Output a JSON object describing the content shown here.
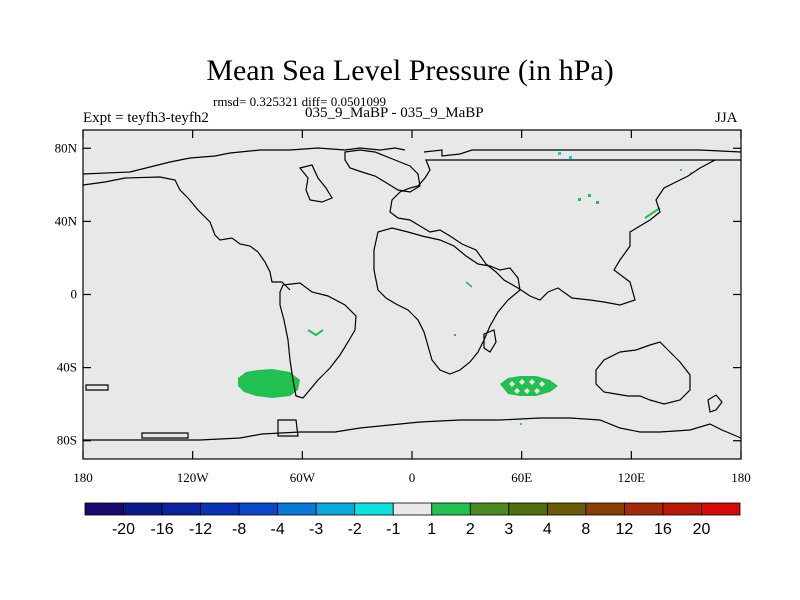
{
  "header": {
    "title": "Mean Sea Level Pressure (in hPa)",
    "stats": "rmsd= 0.325321 diff= 0.0501099",
    "left_label": "Expt = teyfh3-teyfh2",
    "center_label": "035_9_MaBP - 035_9_MaBP",
    "right_label": "JJA"
  },
  "map": {
    "projection": "cylindrical equidistant",
    "lon_range": [
      -180,
      180
    ],
    "lat_range": [
      -90,
      90
    ],
    "background_color": "#e8e8e8",
    "coastline_color": "#000000"
  },
  "axes": {
    "y_ticks": [
      {
        "value": 80,
        "label": "80N"
      },
      {
        "value": 40,
        "label": "40N"
      },
      {
        "value": 0,
        "label": "0"
      },
      {
        "value": -40,
        "label": "40S"
      },
      {
        "value": -80,
        "label": "80S"
      }
    ],
    "x_ticks": [
      {
        "value": -180,
        "label": "180"
      },
      {
        "value": -120,
        "label": "120W"
      },
      {
        "value": -60,
        "label": "60W"
      },
      {
        "value": 0,
        "label": "0"
      },
      {
        "value": 60,
        "label": "60E"
      },
      {
        "value": 120,
        "label": "120E"
      },
      {
        "value": 180,
        "label": "180"
      }
    ]
  },
  "colorbar": {
    "boundaries": [
      "-20",
      "-16",
      "-12",
      "-8",
      "-4",
      "-3",
      "-2",
      "-1",
      "1",
      "2",
      "3",
      "4",
      "8",
      "12",
      "16",
      "20"
    ],
    "colors": [
      "#1a0a6e",
      "#0a1a8a",
      "#0a24a0",
      "#0a32b4",
      "#0a48c8",
      "#0a78d8",
      "#0aa8dc",
      "#10e0e0",
      "#e8e8e8",
      "#22c050",
      "#4a8a20",
      "#4e6e10",
      "#6a5a08",
      "#8a3e08",
      "#a02a0a",
      "#b81a0a",
      "#d40a0a"
    ]
  },
  "field_regions": [
    {
      "name": "se-pacific-positive",
      "lon_range": [
        -100,
        -60
      ],
      "lat_range": [
        -55,
        -42
      ],
      "color": "#22c050"
    },
    {
      "name": "s-indian-positive",
      "lon_range": [
        50,
        80
      ],
      "lat_range": [
        -55,
        -43
      ],
      "color": "#22c050"
    }
  ]
}
